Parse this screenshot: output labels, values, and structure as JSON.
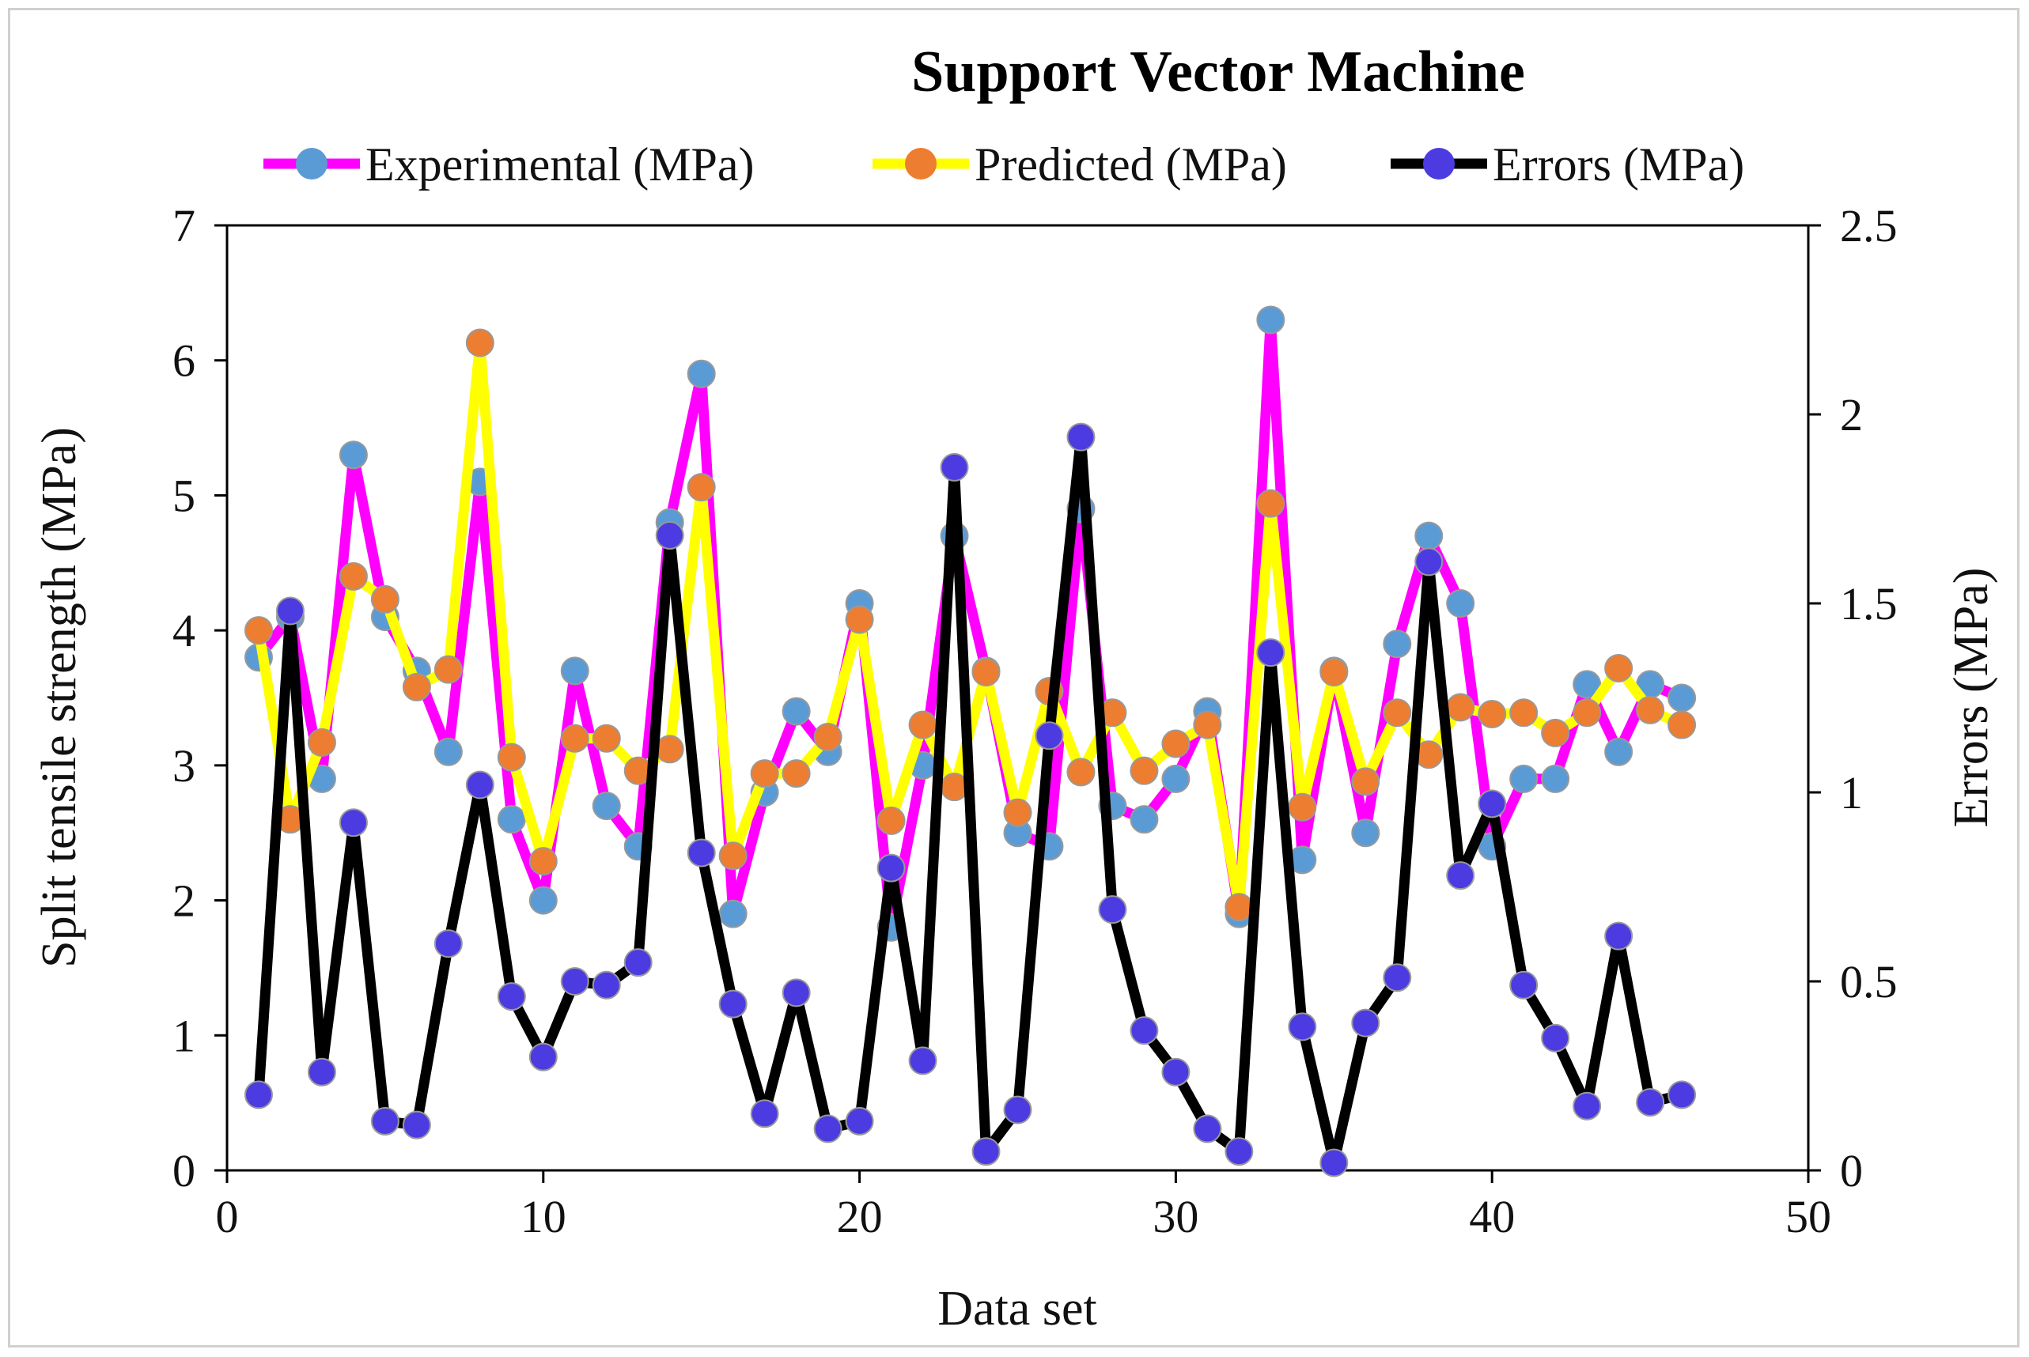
{
  "chart_data": {
    "type": "line",
    "title": "Support Vector Machine",
    "xlabel": "Data set",
    "ylabel": "Split tensile strength (MPa)",
    "y2label": "Errors (MPa)",
    "xlim": [
      0,
      50
    ],
    "ylim": [
      0,
      7
    ],
    "y2lim": [
      0,
      2.5
    ],
    "xticks": [
      "0",
      "10",
      "20",
      "30",
      "40",
      "50"
    ],
    "yticks": [
      "0",
      "1",
      "2",
      "3",
      "4",
      "5",
      "6",
      "7"
    ],
    "y2ticks": [
      "0",
      "0.5",
      "1",
      "1.5",
      "2",
      "2.5"
    ],
    "x": [
      1,
      2,
      3,
      4,
      5,
      6,
      7,
      8,
      9,
      10,
      11,
      12,
      13,
      14,
      15,
      16,
      17,
      18,
      19,
      20,
      21,
      22,
      23,
      24,
      25,
      26,
      27,
      28,
      29,
      30,
      31,
      32,
      33,
      34,
      35,
      36,
      37,
      38,
      39,
      40,
      41,
      42,
      43,
      44,
      45,
      46
    ],
    "series": [
      {
        "name": "Experimental (MPa)",
        "axis": "left",
        "line_color": "#ff00ff",
        "marker_color": "#5b9bd5",
        "values": [
          3.8,
          4.1,
          2.9,
          5.3,
          4.1,
          3.7,
          3.1,
          5.1,
          2.6,
          2.0,
          3.7,
          2.7,
          2.4,
          4.8,
          5.9,
          1.9,
          2.8,
          3.4,
          3.1,
          4.2,
          1.8,
          3.0,
          4.7,
          3.7,
          2.5,
          2.4,
          4.9,
          2.7,
          2.6,
          2.9,
          3.4,
          1.9,
          6.3,
          2.3,
          3.7,
          2.5,
          3.9,
          4.7,
          4.2,
          2.4,
          2.9,
          2.9,
          3.6,
          3.1,
          3.6,
          3.5
        ]
      },
      {
        "name": "Predicted (MPa)",
        "axis": "left",
        "line_color": "#ffff00",
        "marker_color": "#ed7d31",
        "values": [
          4.0,
          2.6,
          3.17,
          4.4,
          4.23,
          3.58,
          3.71,
          6.13,
          3.06,
          2.29,
          3.2,
          3.2,
          2.96,
          3.12,
          5.06,
          2.33,
          2.94,
          2.94,
          3.21,
          4.08,
          2.59,
          3.3,
          2.84,
          3.69,
          2.65,
          3.55,
          2.95,
          3.39,
          2.96,
          3.16,
          3.3,
          1.95,
          4.94,
          2.69,
          3.69,
          2.88,
          3.39,
          3.08,
          3.43,
          3.38,
          3.39,
          3.24,
          3.39,
          3.72,
          3.41,
          3.3
        ]
      },
      {
        "name": "Errors (MPa)",
        "axis": "right",
        "line_color": "#000000",
        "marker_color": "#4b3be0",
        "values": [
          0.2,
          1.48,
          0.26,
          0.92,
          0.13,
          0.12,
          0.6,
          1.02,
          0.46,
          0.3,
          0.5,
          0.49,
          0.55,
          1.68,
          0.84,
          0.44,
          0.15,
          0.47,
          0.11,
          0.13,
          0.8,
          0.29,
          1.86,
          0.05,
          0.16,
          1.15,
          1.94,
          0.69,
          0.37,
          0.26,
          0.11,
          0.05,
          1.37,
          0.38,
          0.02,
          0.39,
          0.51,
          1.61,
          0.78,
          0.97,
          0.49,
          0.35,
          0.17,
          0.62,
          0.18,
          0.2
        ]
      }
    ],
    "legend_position": "top"
  }
}
